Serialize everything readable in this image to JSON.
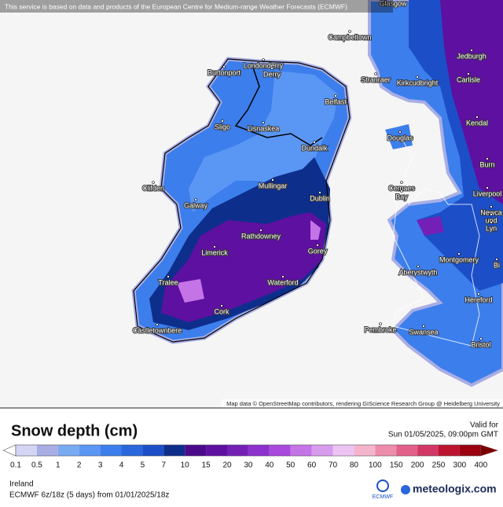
{
  "header": {
    "notice": "This service is based on data and products of the European Centre for Medium-range Weather Forecasts (ECMWF)"
  },
  "map": {
    "attribution": "Map data © OpenStreetMap contributors, rendering GIScience Research Group @ Heidelberg University",
    "cities": [
      "Glasgow",
      "Campbeltown",
      "Jedburgh",
      "Londonderry",
      "Derry",
      "Burtonport",
      "Stranraer",
      "Kirkcudbright",
      "Carlisle",
      "Belfast",
      "Kendal",
      "Lisnaskea",
      "Sligo",
      "Dundalk",
      "Douglas",
      "Burn",
      "Clifden",
      "Mullingar",
      "Dublin",
      "Cemaes",
      "Bay",
      "Liverpool",
      "Galway",
      "Newca",
      "und",
      "Lyn",
      "Rathdowney",
      "Gorey",
      "Limerick",
      "Montgomery",
      "Bi",
      "Aberystwyth",
      "Tralee",
      "Waterford",
      "Hereford",
      "Cork",
      "Pembroke",
      "Swansea",
      "Castletownbere",
      "Bristol"
    ]
  },
  "legend": {
    "title": "Snow depth (cm)",
    "valid_label": "Valid for",
    "valid_time": "Sun 01/05/2025, 09:00pm GMT",
    "ticks": [
      0.1,
      0.5,
      1,
      2,
      3,
      4,
      5,
      7,
      10,
      15,
      20,
      30,
      40,
      50,
      60,
      70,
      80,
      100,
      150,
      200,
      250,
      300,
      400
    ],
    "colors": [
      "#d4d4f4",
      "#a8aee4",
      "#78aaf2",
      "#5a96f4",
      "#3c7eec",
      "#2a66dc",
      "#1c4ec8",
      "#0e2e8c",
      "#4a0a8a",
      "#5e10a0",
      "#7420b6",
      "#8c30ce",
      "#a848dc",
      "#c474e6",
      "#d89cee",
      "#ecc4f4",
      "#f4b4cc",
      "#ee8cac",
      "#e2608a",
      "#d23866",
      "#bc1430",
      "#9a0010"
    ],
    "below_color": "#ffffff",
    "above_color": "#7a0000"
  },
  "footer": {
    "region": "Ireland",
    "run": "ECMWF 6z/18z (5 days) from 01/01/2025/18z",
    "logo_left": "ECMWF",
    "logo_right": "meteologix.com"
  }
}
